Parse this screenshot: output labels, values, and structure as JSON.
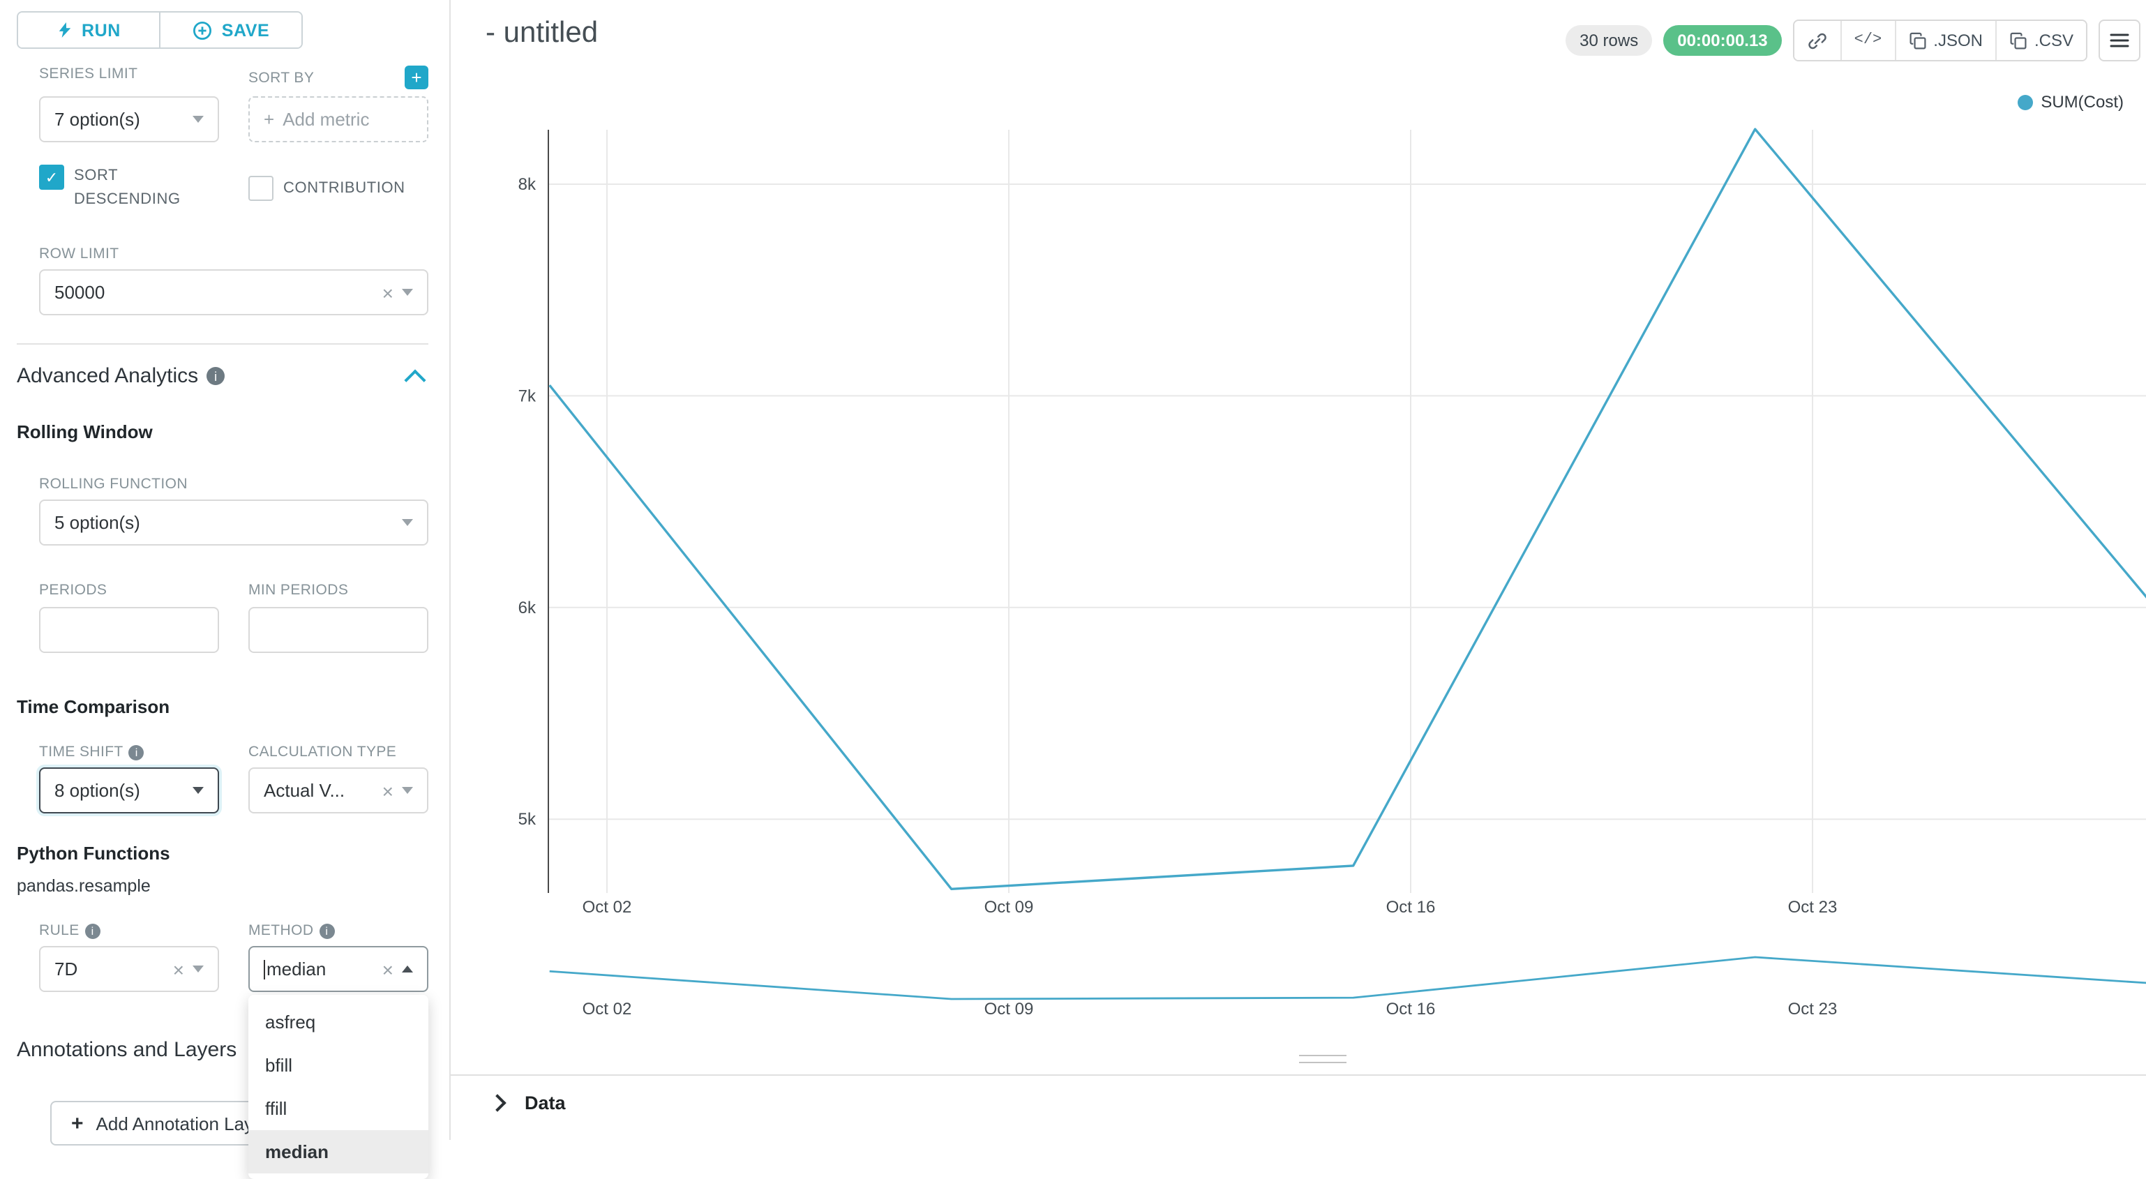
{
  "colors": {
    "accent": "#20a7c9",
    "chart_line": "#45a8c9",
    "timer_green": "#5ac189"
  },
  "sidebar": {
    "run_button": "RUN",
    "save_button": "SAVE",
    "series_limit_label": "SERIES LIMIT",
    "series_limit_value": "7 option(s)",
    "sort_by_label": "SORT BY",
    "sort_by_placeholder": "Add metric",
    "sort_descending_label": "SORT DESCENDING",
    "sort_descending_checked": true,
    "contribution_label": "CONTRIBUTION",
    "contribution_checked": false,
    "row_limit_label": "ROW LIMIT",
    "row_limit_value": "50000",
    "advanced_analytics_title": "Advanced Analytics",
    "rolling_window_title": "Rolling Window",
    "rolling_function_label": "ROLLING FUNCTION",
    "rolling_function_value": "5 option(s)",
    "periods_label": "PERIODS",
    "min_periods_label": "MIN PERIODS",
    "periods_value": "",
    "min_periods_value": "",
    "time_comparison_title": "Time Comparison",
    "time_shift_label": "TIME SHIFT",
    "time_shift_value": "8 option(s)",
    "calculation_type_label": "CALCULATION TYPE",
    "calculation_type_value": "Actual V...",
    "python_functions_title": "Python Functions",
    "python_functions_subtitle": "pandas.resample",
    "rule_label": "RULE",
    "rule_value": "7D",
    "method_label": "METHOD",
    "method_value": "median",
    "method_options": [
      "asfreq",
      "bfill",
      "ffill",
      "median"
    ],
    "method_selected": "median",
    "annotations_title": "Annotations and Layers",
    "add_annotation_button": "Add Annotation Layer"
  },
  "header": {
    "title": "- untitled",
    "rows_badge": "30 rows",
    "timer_badge": "00:00:00.13",
    "json_label": ".JSON",
    "csv_label": ".CSV"
  },
  "chart_data": {
    "type": "line",
    "title": "",
    "xlabel": "",
    "ylabel": "",
    "grid": true,
    "legend_position": "top-right",
    "x_unit": "date (Oct 2022), one point per 7D resample",
    "ylim": [
      4500,
      8500
    ],
    "y_ticks": [
      {
        "value": 5000,
        "label": "5k"
      },
      {
        "value": 6000,
        "label": "6k"
      },
      {
        "value": 7000,
        "label": "7k"
      },
      {
        "value": 8000,
        "label": "8k"
      }
    ],
    "x_ticks": [
      {
        "day": 1,
        "label": "Oct 02"
      },
      {
        "day": 8,
        "label": "Oct 09"
      },
      {
        "day": 15,
        "label": "Oct 16"
      },
      {
        "day": 22,
        "label": "Oct 23"
      }
    ],
    "series": [
      {
        "name": "SUM(Cost)",
        "points": [
          {
            "day": 0,
            "date": "Oct 01",
            "value": 7050
          },
          {
            "day": 7,
            "date": "Oct 08",
            "value": 4670
          },
          {
            "day": 14,
            "date": "Oct 15",
            "value": 4780
          },
          {
            "day": 21,
            "date": "Oct 22",
            "value": 8260
          },
          {
            "day": 28,
            "date": "Oct 29",
            "value": 5990
          }
        ]
      }
    ],
    "has_range_selector": true
  },
  "data_panel": {
    "title": "Data"
  }
}
